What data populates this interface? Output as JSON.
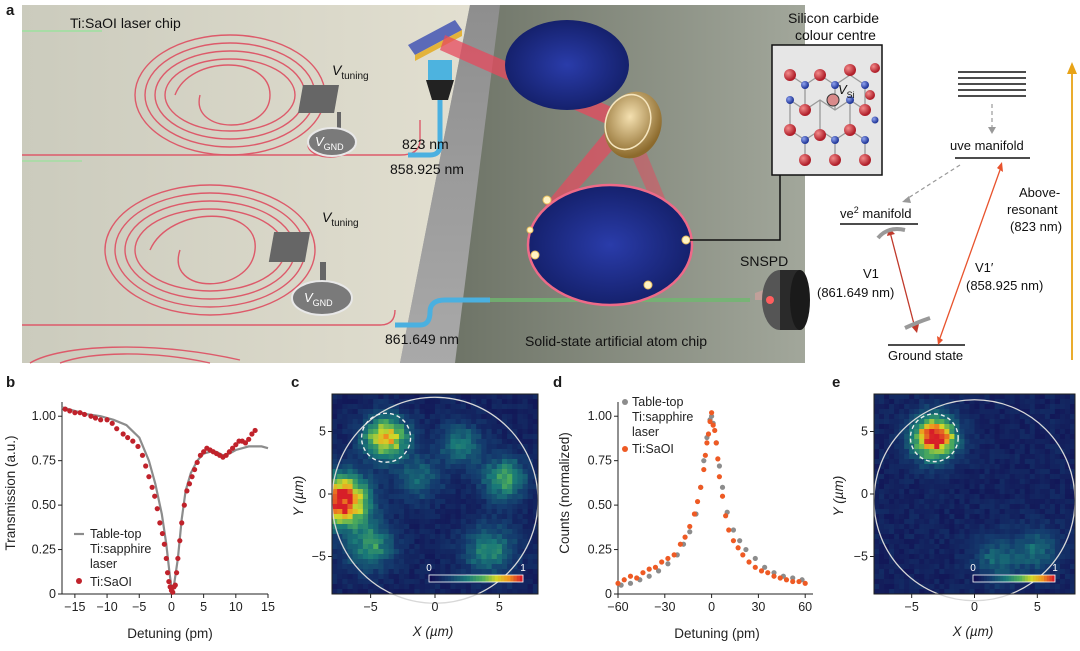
{
  "panel_labels": {
    "a": "a",
    "b": "b",
    "c": "c",
    "d": "d",
    "e": "e"
  },
  "panel_a": {
    "chip_label": "Ti:SaOI laser chip",
    "v_tuning_main": "V",
    "v_tuning_sub": "tuning",
    "v_gnd_main": "V",
    "v_gnd_sub": "GND",
    "wl_823": "823 nm",
    "wl_858": "858.925 nm",
    "wl_861": "861.649 nm",
    "atom_chip_label": "Solid-state artificial atom chip",
    "snspd_label": "SNSPD",
    "sic_title_line1": "Silicon carbide",
    "sic_title_line2": "colour centre",
    "vsi_main": "V",
    "vsi_sub": "Si",
    "uve_manifold": "uve manifold",
    "ve2_manifold_main": "ve",
    "ve2_manifold_sup": "2",
    "ve2_manifold_rest": " manifold",
    "ground_state": "Ground state",
    "v1_label": "V1",
    "v1_wl": "(861.649 nm)",
    "v1p_label": "V1′",
    "v1p_wl": "(858.925 nm)",
    "above_line1": "Above-",
    "above_line2": "resonant",
    "above_line3": "(823 nm)",
    "colors": {
      "transition_red": "#c0392b",
      "above_orange": "#e8a317",
      "ground_line": "#111111"
    }
  },
  "chart_data": [
    {
      "id": "b",
      "type": "scatter",
      "xlabel": "Detuning (pm)",
      "ylabel": "Transmission (a.u.)",
      "xlim": [
        -17,
        15
      ],
      "ylim": [
        0,
        1.08
      ],
      "xticks": [
        -15,
        -10,
        -5,
        0,
        5,
        10,
        15
      ],
      "yticks": [
        0,
        0.25,
        0.5,
        0.75,
        1.0
      ],
      "xtick_labels": [
        "−15",
        "−10",
        "−5",
        "0",
        "5",
        "10",
        "15"
      ],
      "ytick_labels": [
        "0",
        "0.25",
        "0.50",
        "0.75",
        "1.00"
      ],
      "legend": [
        "Table-top",
        "Ti:sapphire",
        "laser",
        "Ti:SaOI"
      ],
      "series": [
        {
          "name": "Table-top Ti:sapphire laser",
          "style": "line",
          "color": "#8c8c8c",
          "x": [
            -17,
            -15,
            -13,
            -11,
            -9,
            -7,
            -5,
            -3.5,
            -2.5,
            -1.5,
            -0.8,
            -0.3,
            0,
            0.4,
            1,
            1.6,
            2.2,
            3,
            4,
            5,
            6,
            7,
            8,
            9,
            10,
            11,
            12,
            13,
            14,
            15
          ],
          "y": [
            1.05,
            1.03,
            1.01,
            1.0,
            0.98,
            0.95,
            0.88,
            0.75,
            0.62,
            0.45,
            0.28,
            0.12,
            0.04,
            0.05,
            0.2,
            0.42,
            0.58,
            0.68,
            0.75,
            0.79,
            0.8,
            0.8,
            0.78,
            0.79,
            0.81,
            0.82,
            0.83,
            0.83,
            0.83,
            0.82
          ]
        },
        {
          "name": "Ti:SaOI",
          "style": "points",
          "color": "#c0222b",
          "x": [
            -16.5,
            -15.8,
            -15,
            -14.2,
            -13.5,
            -12.5,
            -11.8,
            -11,
            -10,
            -9.2,
            -8.5,
            -7.5,
            -6.8,
            -6,
            -5.2,
            -4.5,
            -4,
            -3.5,
            -3,
            -2.6,
            -2.2,
            -1.8,
            -1.4,
            -1.1,
            -0.8,
            -0.6,
            -0.4,
            -0.2,
            0,
            0.2,
            0.4,
            0.6,
            0.8,
            1,
            1.3,
            1.6,
            2,
            2.4,
            2.8,
            3.2,
            3.6,
            4,
            4.5,
            5,
            5.5,
            6,
            6.5,
            7,
            7.5,
            8,
            8.5,
            9,
            9.5,
            10,
            10.5,
            11,
            11.5,
            12,
            12.5,
            13
          ],
          "y": [
            1.04,
            1.03,
            1.02,
            1.02,
            1.01,
            1.0,
            0.99,
            0.98,
            0.98,
            0.96,
            0.93,
            0.9,
            0.88,
            0.86,
            0.83,
            0.78,
            0.72,
            0.66,
            0.6,
            0.55,
            0.48,
            0.4,
            0.34,
            0.28,
            0.2,
            0.12,
            0.07,
            0.04,
            0.02,
            0.01,
            0.04,
            0.05,
            0.12,
            0.2,
            0.3,
            0.4,
            0.5,
            0.58,
            0.62,
            0.66,
            0.7,
            0.74,
            0.78,
            0.8,
            0.82,
            0.81,
            0.8,
            0.79,
            0.78,
            0.77,
            0.78,
            0.8,
            0.82,
            0.84,
            0.86,
            0.86,
            0.85,
            0.87,
            0.9,
            0.92
          ]
        }
      ]
    },
    {
      "id": "c",
      "type": "heatmap",
      "xlabel": "X (µm)",
      "ylabel": "Y (µm)",
      "xlim": [
        -8,
        8
      ],
      "ylim": [
        -8,
        8
      ],
      "xticks": [
        -5,
        0,
        5
      ],
      "yticks": [
        -5,
        0,
        5
      ],
      "xtick_labels": [
        "−5",
        "0",
        "5"
      ],
      "ytick_labels": [
        "−5",
        "0",
        "5"
      ],
      "colorbar": {
        "min_label": "0",
        "max_label": "1"
      },
      "spots": [
        {
          "x": -3.8,
          "y": 4.5,
          "r": 1.2,
          "amp": 0.75
        },
        {
          "x": -7.2,
          "y": -0.5,
          "r": 1.4,
          "amp": 1.0
        },
        {
          "x": 5.4,
          "y": 1.2,
          "r": 1.2,
          "amp": 0.45
        },
        {
          "x": -5.0,
          "y": -4.2,
          "r": 1.3,
          "amp": 0.4
        },
        {
          "x": 2.0,
          "y": 4.0,
          "r": 1.2,
          "amp": 0.3
        },
        {
          "x": 4.2,
          "y": -4.5,
          "r": 1.4,
          "amp": 0.35
        },
        {
          "x": -1.2,
          "y": 1.2,
          "r": 1.2,
          "amp": 0.25
        }
      ],
      "highlight_circle": {
        "x": -3.8,
        "y": 4.5,
        "r": 1.9
      },
      "field_circle": {
        "x": 0,
        "y": -0.5,
        "r": 8
      }
    },
    {
      "id": "d",
      "type": "scatter",
      "xlabel": "Detuning (pm)",
      "ylabel": "Counts (normalized)",
      "xlim": [
        -60,
        65
      ],
      "ylim": [
        0,
        1.08
      ],
      "xticks": [
        -60,
        -30,
        0,
        30,
        60
      ],
      "yticks": [
        0,
        0.25,
        0.5,
        0.75,
        1.0
      ],
      "xtick_labels": [
        "−60",
        "−30",
        "0",
        "30",
        "60"
      ],
      "ytick_labels": [
        "0",
        "0.25",
        "0.50",
        "0.75",
        "1.00"
      ],
      "legend": [
        "Table-top",
        "Ti:sapphire",
        "laser",
        "Ti:SaOI"
      ],
      "series": [
        {
          "name": "Table-top Ti:sapphire laser",
          "style": "points",
          "color": "#8c8c8c",
          "x": [
            -58,
            -52,
            -46,
            -40,
            -34,
            -28,
            -22,
            -18,
            -14,
            -10,
            -7,
            -5,
            -3,
            -1,
            0,
            1,
            3,
            5,
            7,
            10,
            14,
            18,
            22,
            28,
            34,
            40,
            46,
            52,
            58
          ],
          "y": [
            0.05,
            0.06,
            0.08,
            0.1,
            0.13,
            0.17,
            0.22,
            0.28,
            0.35,
            0.45,
            0.6,
            0.75,
            0.88,
            0.98,
            1.0,
            0.96,
            0.85,
            0.72,
            0.6,
            0.46,
            0.36,
            0.3,
            0.25,
            0.2,
            0.15,
            0.12,
            0.1,
            0.09,
            0.08
          ]
        },
        {
          "name": "Ti:SaOI",
          "style": "points",
          "color": "#ee5a24",
          "x": [
            -60,
            -56,
            -52,
            -48,
            -44,
            -40,
            -36,
            -32,
            -28,
            -24,
            -20,
            -17,
            -14,
            -11,
            -9,
            -7,
            -5,
            -4,
            -3,
            -2,
            -1,
            0,
            1,
            2,
            3,
            4,
            5,
            7,
            9,
            11,
            14,
            17,
            20,
            24,
            28,
            32,
            36,
            40,
            44,
            48,
            52,
            56,
            60
          ],
          "y": [
            0.06,
            0.08,
            0.1,
            0.09,
            0.12,
            0.14,
            0.15,
            0.18,
            0.2,
            0.22,
            0.28,
            0.32,
            0.38,
            0.45,
            0.52,
            0.6,
            0.7,
            0.78,
            0.85,
            0.9,
            0.97,
            1.02,
            0.95,
            0.92,
            0.85,
            0.76,
            0.66,
            0.55,
            0.44,
            0.36,
            0.3,
            0.26,
            0.22,
            0.18,
            0.15,
            0.13,
            0.12,
            0.1,
            0.09,
            0.08,
            0.07,
            0.07,
            0.06
          ]
        }
      ]
    },
    {
      "id": "e",
      "type": "heatmap",
      "xlabel": "X (µm)",
      "ylabel": "Y (µm)",
      "xlim": [
        -8,
        8
      ],
      "ylim": [
        -8,
        8
      ],
      "xticks": [
        -5,
        0,
        5
      ],
      "yticks": [
        -5,
        0,
        5
      ],
      "xtick_labels": [
        "−5",
        "0",
        "5"
      ],
      "ytick_labels": [
        "−5",
        "0",
        "5"
      ],
      "colorbar": {
        "min_label": "0",
        "max_label": "1"
      },
      "spots": [
        {
          "x": -3.2,
          "y": 4.5,
          "r": 1.2,
          "amp": 1.0
        },
        {
          "x": 1.8,
          "y": -5.2,
          "r": 1.3,
          "amp": 0.25
        },
        {
          "x": 5.0,
          "y": -4.5,
          "r": 1.2,
          "amp": 0.25
        }
      ],
      "highlight_circle": {
        "x": -3.2,
        "y": 4.5,
        "r": 1.9
      },
      "field_circle": {
        "x": 0,
        "y": -0.5,
        "r": 8
      }
    }
  ]
}
